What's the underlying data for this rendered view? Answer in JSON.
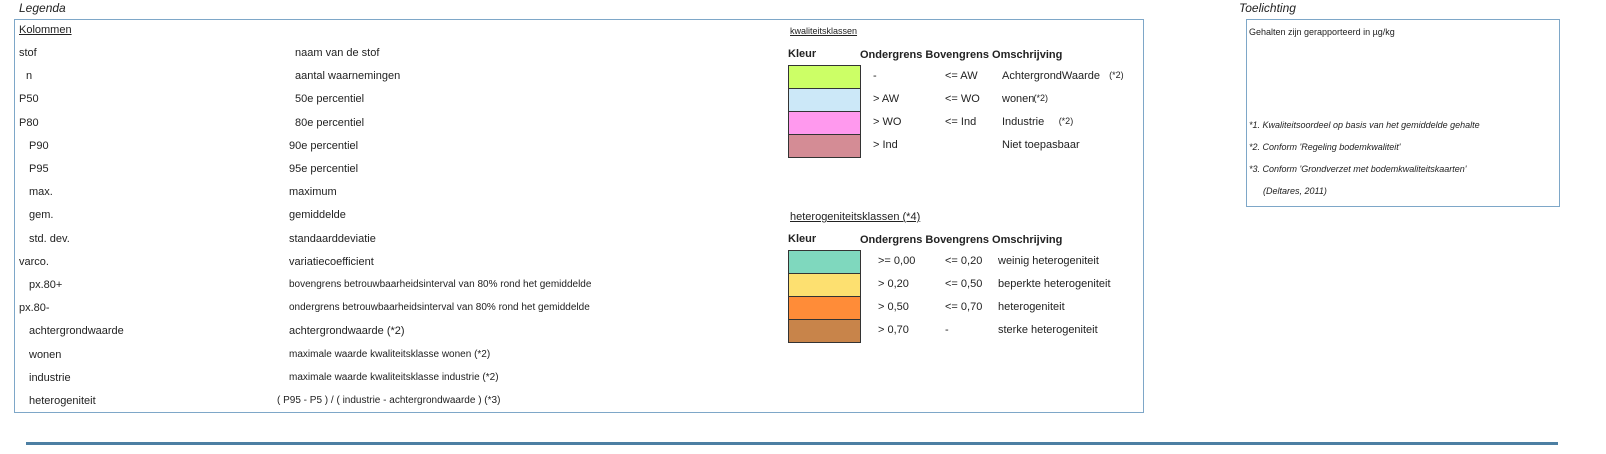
{
  "legend_title": "Legenda",
  "toelichting_title": "Toelichting",
  "columns_heading": "Kolommen",
  "columns": [
    {
      "code": "stof",
      "desc": "naam van de stof"
    },
    {
      "code": "n",
      "desc": "aantal waarnemingen"
    },
    {
      "code": "P50",
      "desc": "50e percentiel"
    },
    {
      "code": "P80",
      "desc": "80e percentiel"
    },
    {
      "code": "P90",
      "desc": "90e percentiel"
    },
    {
      "code": "P95",
      "desc": "95e percentiel"
    },
    {
      "code": "max.",
      "desc": "maximum"
    },
    {
      "code": "gem.",
      "desc": "gemiddelde"
    },
    {
      "code": "std. dev.",
      "desc": "standaarddeviatie"
    },
    {
      "code": "varco.",
      "desc": "variatiecoefficient"
    },
    {
      "code": "px.80+",
      "desc": "bovengrens betrouwbaarheidsinterval van 80% rond het gemiddelde"
    },
    {
      "code": "px.80-",
      "desc": "ondergrens betrouwbaarheidsinterval van 80% rond het gemiddelde"
    },
    {
      "code": "achtergrondwaarde",
      "desc": "achtergrondwaarde (*2)"
    },
    {
      "code": "wonen",
      "desc": "maximale waarde kwaliteitsklasse wonen (*2)"
    },
    {
      "code": "industrie",
      "desc": "maximale waarde kwaliteitsklasse industrie (*2)"
    },
    {
      "code": "heterogeniteit",
      "desc": "( P95 - P5 ) / ( industrie - achtergrondwaarde ) (*3)"
    }
  ],
  "kwaliteit": {
    "heading": "kwaliteitsklassen",
    "col_kleur": "Kleur",
    "col_rest": "Ondergrens Bovengrens Omschrijving",
    "rows": [
      {
        "color": "#ccff66",
        "onder": "-",
        "boven": "<= AW",
        "omschr": "AchtergrondWaarde",
        "note": "(*2)"
      },
      {
        "color": "#cce8f8",
        "onder": "> AW",
        "boven": "<= WO",
        "omschr": "wonen",
        "note": "(*2)"
      },
      {
        "color": "#ff99ee",
        "onder": "> WO",
        "boven": "<= Ind",
        "omschr": "Industrie",
        "note": "(*2)"
      },
      {
        "color": "#d48c95",
        "onder": "> Ind",
        "boven": "",
        "omschr": "Niet toepasbaar",
        "note": ""
      }
    ]
  },
  "heterogeniteit": {
    "heading": "heterogeniteitsklassen (*4)",
    "col_kleur": "Kleur",
    "col_rest": "Ondergrens Bovengrens Omschrijving",
    "rows": [
      {
        "color": "#7fd8be",
        "onder": ">= 0,00",
        "boven": "<= 0,20",
        "omschr": "weinig heterogeniteit"
      },
      {
        "color": "#fde070",
        "onder": "> 0,20",
        "boven": "<= 0,50",
        "omschr": "beperkte heterogeniteit"
      },
      {
        "color": "#ff8c38",
        "onder": "> 0,50",
        "boven": "<= 0,70",
        "omschr": "heterogeniteit"
      },
      {
        "color": "#c8844a",
        "onder": "> 0,70",
        "boven": "-",
        "omschr": "sterke heterogeniteit"
      }
    ]
  },
  "toelichting": {
    "units": "Gehalten zijn gerapporteerd in µg/kg",
    "notes": [
      "*1. Kwaliteitsoordeel op basis van het gemiddelde gehalte",
      "*2. Conform 'Regeling bodemkwaliteit'",
      "*3. Conform 'Grondverzet met bodemkwaliteitskaarten'",
      "(Deltares, 2011)"
    ]
  }
}
